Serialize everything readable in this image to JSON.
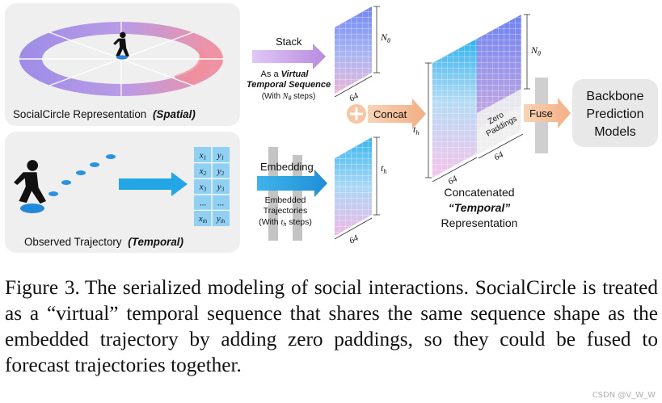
{
  "figure": {
    "panel_spatial_label": "SocialCircle Representation",
    "panel_spatial_tag": "(Spatial)",
    "panel_temporal_label": "Observed Trajectory",
    "panel_temporal_tag": "(Temporal)",
    "stack_label": "Stack",
    "virtual_line1_prefix": "As a ",
    "virtual_line1_emph": "Virtual",
    "virtual_line2": "Temporal Sequence",
    "virtual_line3_prefix": "(With ",
    "virtual_line3_var": "N",
    "virtual_line3_sub": "θ",
    "virtual_line3_suffix": " steps)",
    "embedding_label": "Embedding",
    "embedded_line1": "Embedded",
    "embedded_line2": "Trajectories",
    "embedded_line3_prefix": "(With ",
    "embedded_line3_var": "t",
    "embedded_line3_sub": "h",
    "embedded_line3_suffix": " steps)",
    "concat_label": "Concat",
    "fuse_label": "Fuse",
    "backbone_line1": "Backbone",
    "backbone_line2": "Prediction",
    "backbone_line3": "Models",
    "zero_line1": "Zero",
    "zero_line2": "Paddings",
    "result_line1": "Concatenated",
    "result_line2": "“Temporal”",
    "result_line3": "Representation",
    "dim_64": "64",
    "dim_n": "N",
    "dim_n_sub": "θ",
    "dim_t": "t",
    "dim_t_sub": "h",
    "table_rows": [
      [
        "x1",
        "y1"
      ],
      [
        "x2",
        "y2"
      ],
      [
        "x3",
        "y3"
      ],
      [
        "...",
        "..."
      ],
      [
        "xth",
        "yth"
      ]
    ],
    "colors": {
      "panel_bg": "#efefef",
      "arrow_cyan": "#22a6e6",
      "arrow_purple": "#bf8fe0",
      "arrow_orange": "#f3b48a",
      "spatial_tag": "#1a1a1a"
    }
  },
  "caption": {
    "label": "Figure 3.",
    "text": "The serialized modeling of social interactions. SocialCircle is treated as a “virtual” temporal sequence that shares the same sequence shape as the embedded trajectory by adding zero paddings, so they could be fused to forecast trajectories together."
  },
  "watermark": "CSDN @V_W_W"
}
